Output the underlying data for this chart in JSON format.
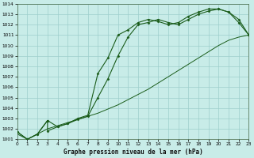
{
  "title": "Graphe pression niveau de la mer (hPa)",
  "bg_color": "#c8ece8",
  "grid_color": "#9dcfcc",
  "dark_green": "#1a5c1a",
  "xlim": [
    0,
    23
  ],
  "ylim": [
    1001,
    1014
  ],
  "xticks": [
    0,
    1,
    2,
    3,
    4,
    5,
    6,
    7,
    8,
    9,
    10,
    11,
    12,
    13,
    14,
    15,
    16,
    17,
    18,
    19,
    20,
    21,
    22,
    23
  ],
  "yticks": [
    1001,
    1002,
    1003,
    1004,
    1005,
    1006,
    1007,
    1008,
    1009,
    1010,
    1011,
    1012,
    1013,
    1014
  ],
  "line1_x": [
    0,
    1,
    2,
    3,
    4,
    5,
    6,
    7,
    8,
    9,
    10,
    11,
    12,
    13,
    14,
    15,
    16,
    17,
    18,
    19,
    20,
    21,
    22,
    23
  ],
  "line1_y": [
    1001.7,
    1001.0,
    1001.5,
    1002.8,
    1002.2,
    1002.5,
    1003.0,
    1003.3,
    1007.3,
    1008.8,
    1011.0,
    1011.5,
    1012.2,
    1012.5,
    1012.3,
    1012.0,
    1012.2,
    1012.8,
    1013.2,
    1013.5,
    1013.5,
    1013.2,
    1012.2,
    1011.0
  ],
  "line2_x": [
    0,
    1,
    2,
    3,
    4,
    5,
    6,
    7,
    8,
    9,
    10,
    11,
    12,
    13,
    14,
    15,
    16,
    17,
    18,
    19,
    20,
    21,
    22,
    23
  ],
  "line2_y": [
    1001.5,
    1001.0,
    1001.5,
    1002.0,
    1002.3,
    1002.6,
    1002.9,
    1003.2,
    1003.5,
    1003.9,
    1004.3,
    1004.8,
    1005.3,
    1005.8,
    1006.4,
    1007.0,
    1007.6,
    1008.2,
    1008.8,
    1009.4,
    1010.0,
    1010.5,
    1010.8,
    1011.0
  ],
  "line3_x": [
    0,
    1,
    2,
    3,
    3,
    4,
    5,
    6,
    7,
    8,
    9,
    10,
    11,
    12,
    13,
    14,
    15,
    16,
    17,
    18,
    19,
    20,
    21,
    22,
    23
  ],
  "line3_y": [
    1001.7,
    1001.0,
    1001.5,
    1002.8,
    1001.8,
    1002.2,
    1002.5,
    1002.9,
    1003.2,
    1005.0,
    1006.8,
    1009.0,
    1010.8,
    1012.0,
    1012.2,
    1012.5,
    1012.2,
    1012.0,
    1012.5,
    1013.0,
    1013.3,
    1013.5,
    1013.2,
    1012.5,
    1011.0
  ]
}
